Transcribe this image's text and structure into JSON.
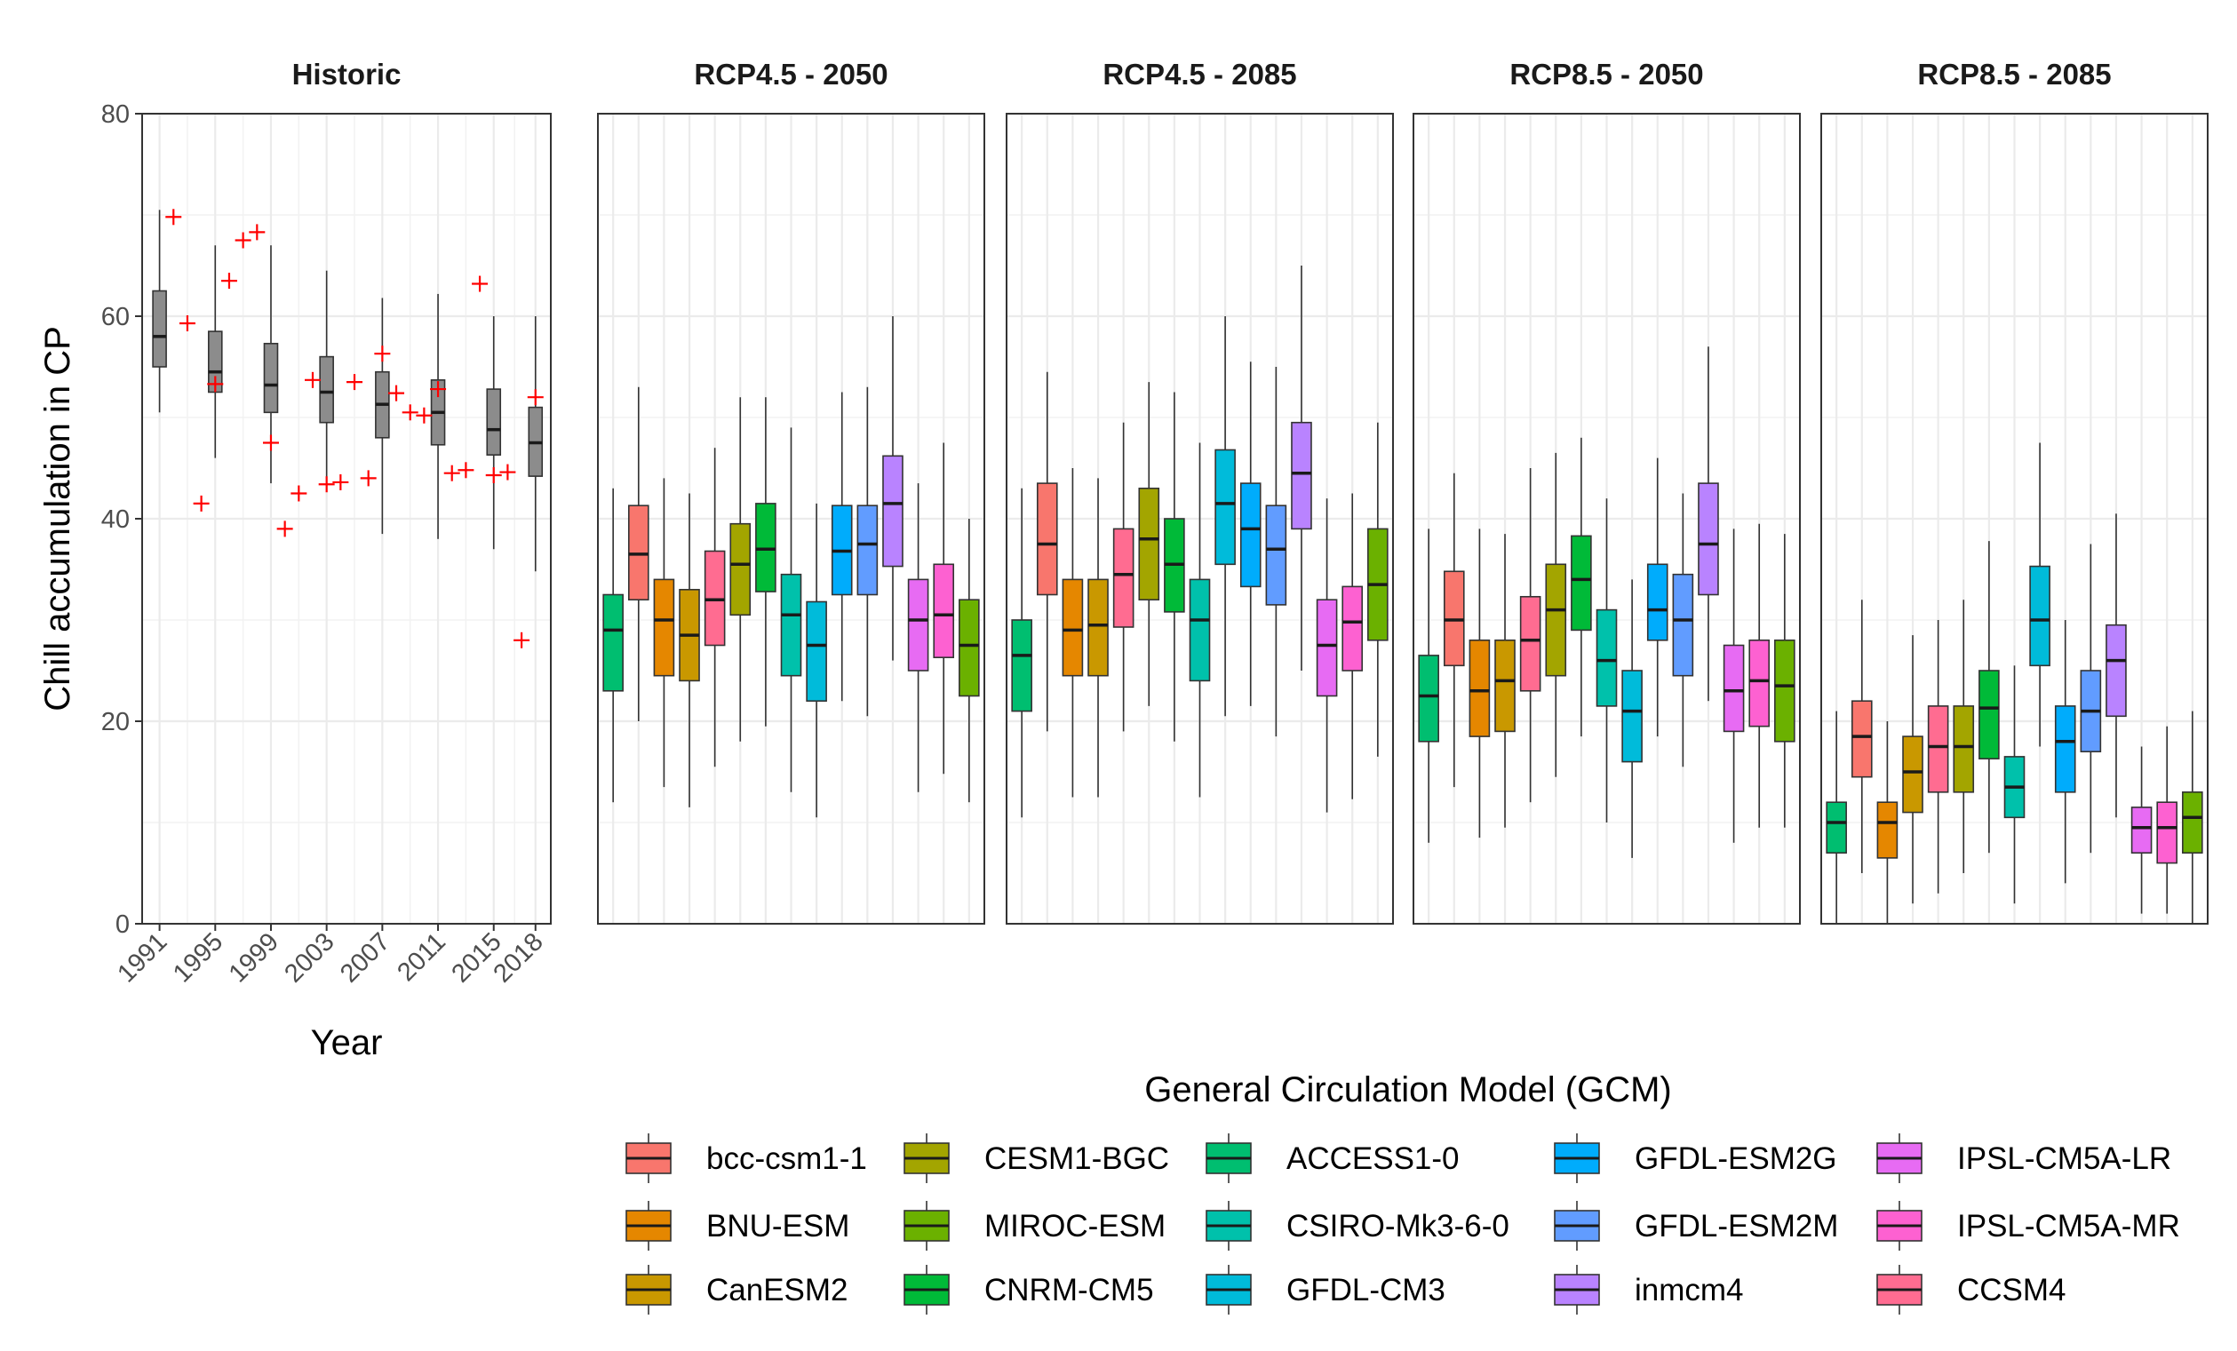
{
  "chart_data": {
    "type": "box",
    "ylabel": "Chill accumulation in CP",
    "ylim": [
      0,
      80
    ],
    "y_ticks": [
      0,
      20,
      40,
      60,
      80
    ],
    "legend_title": "General Circulation Model (GCM)",
    "legend_placement": "bottom",
    "grid": true,
    "historic": {
      "title": "Historic",
      "xlabel": "Year",
      "x_range": [
        1991,
        2018
      ],
      "x_ticks": [
        "1991",
        "1995",
        "1999",
        "2003",
        "2007",
        "2011",
        "2015",
        "2018"
      ],
      "box_color": "#8c8c8c",
      "observed_color": "#ff0000",
      "boxes": [
        {
          "year": 1991,
          "min": 50.5,
          "q1": 55,
          "median": 58,
          "q3": 62.5,
          "max": 70.5
        },
        {
          "year": 1995,
          "min": 46,
          "q1": 52.5,
          "median": 54.5,
          "q3": 58.5,
          "max": 67
        },
        {
          "year": 1999,
          "min": 43.5,
          "q1": 50.5,
          "median": 53.2,
          "q3": 57.3,
          "max": 67
        },
        {
          "year": 2003,
          "min": 44,
          "q1": 49.5,
          "median": 52.5,
          "q3": 56,
          "max": 64.5
        },
        {
          "year": 2007,
          "min": 38.5,
          "q1": 48,
          "median": 51.3,
          "q3": 54.5,
          "max": 61.8
        },
        {
          "year": 2011,
          "min": 38,
          "q1": 47.3,
          "median": 50.5,
          "q3": 53.7,
          "max": 62.2
        },
        {
          "year": 2015,
          "min": 37,
          "q1": 46.3,
          "median": 48.8,
          "q3": 52.8,
          "max": 60
        },
        {
          "year": 2018,
          "min": 34.8,
          "q1": 44.2,
          "median": 47.5,
          "q3": 51,
          "max": 60
        }
      ],
      "observed": [
        {
          "year": 1992,
          "value": 69.8
        },
        {
          "year": 1993,
          "value": 59.3
        },
        {
          "year": 1994,
          "value": 41.5
        },
        {
          "year": 1995,
          "value": 53.3
        },
        {
          "year": 1996,
          "value": 63.5
        },
        {
          "year": 1997,
          "value": 67.5
        },
        {
          "year": 1998,
          "value": 68.3
        },
        {
          "year": 1999,
          "value": 47.5
        },
        {
          "year": 2000,
          "value": 39
        },
        {
          "year": 2001,
          "value": 42.5
        },
        {
          "year": 2002,
          "value": 53.7
        },
        {
          "year": 2003,
          "value": 43.4
        },
        {
          "year": 2004,
          "value": 43.6
        },
        {
          "year": 2005,
          "value": 53.5
        },
        {
          "year": 2006,
          "value": 44
        },
        {
          "year": 2007,
          "value": 56.3
        },
        {
          "year": 2008,
          "value": 52.4
        },
        {
          "year": 2009,
          "value": 50.5
        },
        {
          "year": 2010,
          "value": 50.2
        },
        {
          "year": 2011,
          "value": 52.8
        },
        {
          "year": 2012,
          "value": 44.5
        },
        {
          "year": 2013,
          "value": 44.8
        },
        {
          "year": 2014,
          "value": 63.2
        },
        {
          "year": 2015,
          "value": 44.3
        },
        {
          "year": 2016,
          "value": 44.6
        },
        {
          "year": 2017,
          "value": 28
        },
        {
          "year": 2018,
          "value": 52
        }
      ]
    },
    "gcms": [
      {
        "name": "ACCESS1-0",
        "color": "#00BE70"
      },
      {
        "name": "bcc-csm1-1",
        "color": "#F8766D"
      },
      {
        "name": "BNU-ESM",
        "color": "#E58700"
      },
      {
        "name": "CanESM2",
        "color": "#C99800"
      },
      {
        "name": "CCSM4",
        "color": "#FF6C91"
      },
      {
        "name": "CESM1-BGC",
        "color": "#A3A500"
      },
      {
        "name": "CNRM-CM5",
        "color": "#00BA38"
      },
      {
        "name": "CSIRO-Mk3-6-0",
        "color": "#00C1AB"
      },
      {
        "name": "GFDL-CM3",
        "color": "#00BBDA"
      },
      {
        "name": "GFDL-ESM2G",
        "color": "#00ACFC"
      },
      {
        "name": "GFDL-ESM2M",
        "color": "#619CFF"
      },
      {
        "name": "inmcm4",
        "color": "#B983FF"
      },
      {
        "name": "IPSL-CM5A-LR",
        "color": "#E76BF3"
      },
      {
        "name": "IPSL-CM5A-MR",
        "color": "#FD61D1"
      },
      {
        "name": "MIROC-ESM",
        "color": "#6BB100"
      }
    ],
    "legend_columns": [
      [
        "bcc-csm1-1",
        "BNU-ESM",
        "CanESM2"
      ],
      [
        "CESM1-BGC",
        "MIROC-ESM",
        "CNRM-CM5"
      ],
      [
        "ACCESS1-0",
        "CSIRO-Mk3-6-0",
        "GFDL-CM3"
      ],
      [
        "GFDL-ESM2G",
        "GFDL-ESM2M",
        "inmcm4"
      ],
      [
        "IPSL-CM5A-LR",
        "IPSL-CM5A-MR",
        "CCSM4"
      ]
    ],
    "scenarios": [
      {
        "title": "RCP4.5 - 2050",
        "boxes": [
          {
            "min": 12,
            "q1": 23,
            "median": 29,
            "q3": 32.5,
            "max": 43
          },
          {
            "min": 20,
            "q1": 32,
            "median": 36.5,
            "q3": 41.3,
            "max": 53
          },
          {
            "min": 13.5,
            "q1": 24.5,
            "median": 30,
            "q3": 34,
            "max": 44
          },
          {
            "min": 11.5,
            "q1": 24,
            "median": 28.5,
            "q3": 33,
            "max": 42.5
          },
          {
            "min": 15.5,
            "q1": 27.5,
            "median": 32,
            "q3": 36.8,
            "max": 47
          },
          {
            "min": 18,
            "q1": 30.5,
            "median": 35.5,
            "q3": 39.5,
            "max": 52
          },
          {
            "min": 19.5,
            "q1": 32.8,
            "median": 37,
            "q3": 41.5,
            "max": 52
          },
          {
            "min": 13,
            "q1": 24.5,
            "median": 30.5,
            "q3": 34.5,
            "max": 49
          },
          {
            "min": 10.5,
            "q1": 22,
            "median": 27.5,
            "q3": 31.8,
            "max": 41.5
          },
          {
            "min": 22,
            "q1": 32.5,
            "median": 36.8,
            "q3": 41.3,
            "max": 52.5
          },
          {
            "min": 20.5,
            "q1": 32.5,
            "median": 37.5,
            "q3": 41.3,
            "max": 53
          },
          {
            "min": 26,
            "q1": 35.3,
            "median": 41.5,
            "q3": 46.2,
            "max": 60
          },
          {
            "min": 13,
            "q1": 25,
            "median": 30,
            "q3": 34,
            "max": 43.5
          },
          {
            "min": 14.8,
            "q1": 26.3,
            "median": 30.5,
            "q3": 35.5,
            "max": 47.5
          },
          {
            "min": 12,
            "q1": 22.5,
            "median": 27.5,
            "q3": 32,
            "max": 40
          }
        ]
      },
      {
        "title": "RCP4.5 - 2085",
        "boxes": [
          {
            "min": 10.5,
            "q1": 21,
            "median": 26.5,
            "q3": 30,
            "max": 43
          },
          {
            "min": 19,
            "q1": 32.5,
            "median": 37.5,
            "q3": 43.5,
            "max": 54.5
          },
          {
            "min": 12.5,
            "q1": 24.5,
            "median": 29,
            "q3": 34,
            "max": 45
          },
          {
            "min": 12.5,
            "q1": 24.5,
            "median": 29.5,
            "q3": 34,
            "max": 44
          },
          {
            "min": 19,
            "q1": 29.3,
            "median": 34.5,
            "q3": 39,
            "max": 49.5
          },
          {
            "min": 21.5,
            "q1": 32,
            "median": 38,
            "q3": 43,
            "max": 53.5
          },
          {
            "min": 18,
            "q1": 30.8,
            "median": 35.5,
            "q3": 40,
            "max": 52.5
          },
          {
            "min": 12.5,
            "q1": 24,
            "median": 30,
            "q3": 34,
            "max": 47.5
          },
          {
            "min": 20.5,
            "q1": 35.5,
            "median": 41.5,
            "q3": 46.8,
            "max": 60
          },
          {
            "min": 21.5,
            "q1": 33.3,
            "median": 39,
            "q3": 43.5,
            "max": 55.5
          },
          {
            "min": 18.5,
            "q1": 31.5,
            "median": 37,
            "q3": 41.3,
            "max": 55
          },
          {
            "min": 25,
            "q1": 39,
            "median": 44.5,
            "q3": 49.5,
            "max": 65
          },
          {
            "min": 11,
            "q1": 22.5,
            "median": 27.5,
            "q3": 32,
            "max": 42
          },
          {
            "min": 12.3,
            "q1": 25,
            "median": 29.8,
            "q3": 33.3,
            "max": 42.5
          },
          {
            "min": 16.5,
            "q1": 28,
            "median": 33.5,
            "q3": 39,
            "max": 49.5
          }
        ]
      },
      {
        "title": "RCP8.5 - 2050",
        "boxes": [
          {
            "min": 8,
            "q1": 18,
            "median": 22.5,
            "q3": 26.5,
            "max": 39
          },
          {
            "min": 13.5,
            "q1": 25.5,
            "median": 30,
            "q3": 34.8,
            "max": 44.5
          },
          {
            "min": 8.5,
            "q1": 18.5,
            "median": 23,
            "q3": 28,
            "max": 39
          },
          {
            "min": 9.5,
            "q1": 19,
            "median": 24,
            "q3": 28,
            "max": 38.5
          },
          {
            "min": 12,
            "q1": 23,
            "median": 28,
            "q3": 32.3,
            "max": 45
          },
          {
            "min": 14.5,
            "q1": 24.5,
            "median": 31,
            "q3": 35.5,
            "max": 46.5
          },
          {
            "min": 18.5,
            "q1": 29,
            "median": 34,
            "q3": 38.3,
            "max": 48
          },
          {
            "min": 10,
            "q1": 21.5,
            "median": 26,
            "q3": 31,
            "max": 42
          },
          {
            "min": 6.5,
            "q1": 16,
            "median": 21,
            "q3": 25,
            "max": 34
          },
          {
            "min": 18.5,
            "q1": 28,
            "median": 31,
            "q3": 35.5,
            "max": 46
          },
          {
            "min": 15.5,
            "q1": 24.5,
            "median": 30,
            "q3": 34.5,
            "max": 42.5
          },
          {
            "min": 22,
            "q1": 32.5,
            "median": 37.5,
            "q3": 43.5,
            "max": 57
          },
          {
            "min": 8,
            "q1": 19,
            "median": 23,
            "q3": 27.5,
            "max": 39
          },
          {
            "min": 9.5,
            "q1": 19.5,
            "median": 24,
            "q3": 28,
            "max": 39.5
          },
          {
            "min": 9.5,
            "q1": 18,
            "median": 23.5,
            "q3": 28,
            "max": 38.5
          }
        ]
      },
      {
        "title": "RCP8.5 - 2085",
        "boxes": [
          {
            "min": 0,
            "q1": 7,
            "median": 10,
            "q3": 12,
            "max": 21
          },
          {
            "min": 5,
            "q1": 14.5,
            "median": 18.5,
            "q3": 22,
            "max": 32
          },
          {
            "min": 0,
            "q1": 6.5,
            "median": 10,
            "q3": 12,
            "max": 20
          },
          {
            "min": 2,
            "q1": 11,
            "median": 15,
            "q3": 18.5,
            "max": 28.5
          },
          {
            "min": 3,
            "q1": 13,
            "median": 17.5,
            "q3": 21.5,
            "max": 30
          },
          {
            "min": 5,
            "q1": 13,
            "median": 17.5,
            "q3": 21.5,
            "max": 32
          },
          {
            "min": 7,
            "q1": 16.3,
            "median": 21.3,
            "q3": 25,
            "max": 37.8
          },
          {
            "min": 2,
            "q1": 10.5,
            "median": 13.5,
            "q3": 16.5,
            "max": 25.5
          },
          {
            "min": 17.5,
            "q1": 25.5,
            "median": 30,
            "q3": 35.3,
            "max": 47.5
          },
          {
            "min": 4,
            "q1": 13,
            "median": 18,
            "q3": 21.5,
            "max": 30
          },
          {
            "min": 7,
            "q1": 17,
            "median": 21,
            "q3": 25,
            "max": 37.5
          },
          {
            "min": 10.5,
            "q1": 20.5,
            "median": 26,
            "q3": 29.5,
            "max": 40.5
          },
          {
            "min": 1,
            "q1": 7,
            "median": 9.5,
            "q3": 11.5,
            "max": 17.5
          },
          {
            "min": 1,
            "q1": 6,
            "median": 9.5,
            "q3": 12,
            "max": 19.5
          },
          {
            "min": 0,
            "q1": 7,
            "median": 10.5,
            "q3": 13,
            "max": 21
          }
        ]
      }
    ]
  }
}
